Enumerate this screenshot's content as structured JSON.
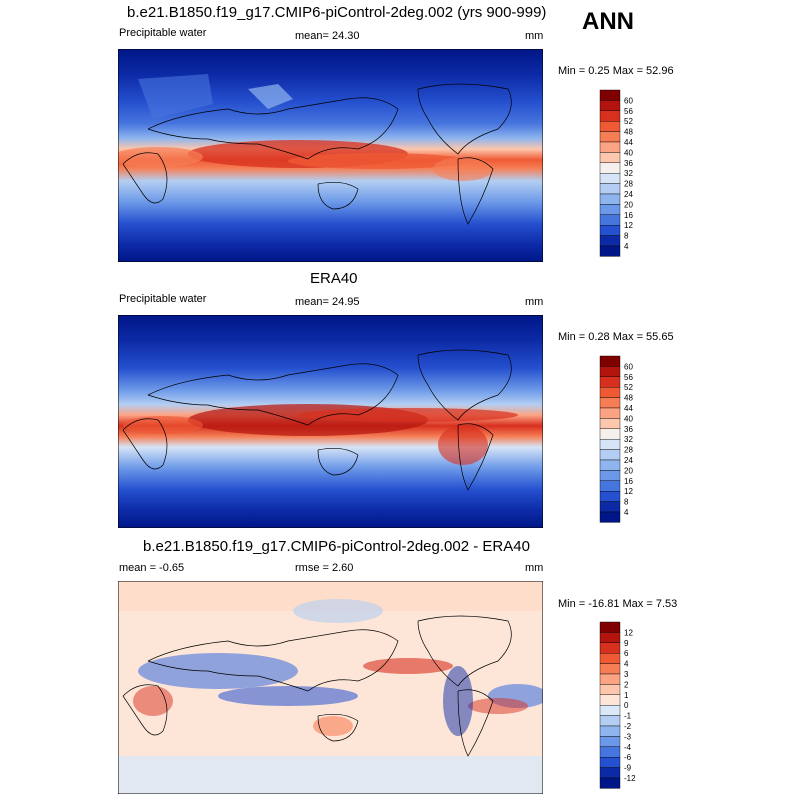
{
  "header": {
    "season": "ANN"
  },
  "panels": [
    {
      "id": "model",
      "title": "b.e21.B1850.f19_g17.CMIP6-piControl-2deg.002 (yrs 900-999)",
      "left_label": "Precipitable water",
      "center_label": "mean=  24.30",
      "units": "mm",
      "minmax": "Min =   0.25 Max =  52.96",
      "colorbar_levels": [
        "60",
        "56",
        "52",
        "48",
        "44",
        "40",
        "36",
        "32",
        "28",
        "24",
        "20",
        "16",
        "12",
        "8",
        "4"
      ],
      "colorbar_colors": [
        "#7f0000",
        "#b3140e",
        "#d7301f",
        "#ef5a35",
        "#f67e55",
        "#fca383",
        "#fdc7ad",
        "#f5f0ec",
        "#d6e4f7",
        "#b3cef2",
        "#8fb5ee",
        "#6b98e8",
        "#4775de",
        "#2550cf",
        "#0d2aa6",
        "#001688"
      ]
    },
    {
      "id": "obs",
      "title": "ERA40",
      "left_label": "Precipitable water",
      "center_label": "mean=  24.95",
      "units": "mm",
      "minmax": "Min =   0.28 Max =  55.65",
      "colorbar_levels": [
        "60",
        "56",
        "52",
        "48",
        "44",
        "40",
        "36",
        "32",
        "28",
        "24",
        "20",
        "16",
        "12",
        "8",
        "4"
      ],
      "colorbar_colors": [
        "#7f0000",
        "#b3140e",
        "#d7301f",
        "#ef5a35",
        "#f67e55",
        "#fca383",
        "#fdc7ad",
        "#f5f0ec",
        "#d6e4f7",
        "#b3cef2",
        "#8fb5ee",
        "#6b98e8",
        "#4775de",
        "#2550cf",
        "#0d2aa6",
        "#001688"
      ]
    },
    {
      "id": "diff",
      "title": "b.e21.B1850.f19_g17.CMIP6-piControl-2deg.002 - ERA40",
      "left_label": "mean =  -0.65",
      "center_label": "rmse =   2.60",
      "units": "mm",
      "minmax": "Min = -16.81 Max =   7.53",
      "colorbar_levels": [
        "12",
        "9",
        "6",
        "4",
        "3",
        "2",
        "1",
        "0",
        "-1",
        "-2",
        "-3",
        "-4",
        "-6",
        "-9",
        "-12"
      ],
      "colorbar_colors": [
        "#7f0000",
        "#b3140e",
        "#d7301f",
        "#ef5a35",
        "#f67e55",
        "#fca383",
        "#fdc7ad",
        "#fde6d8",
        "#dbe8f8",
        "#b3cef2",
        "#8fb5ee",
        "#6b98e8",
        "#4775de",
        "#2550cf",
        "#0d2aa6",
        "#001688"
      ]
    }
  ],
  "chart_data": [
    {
      "type": "heatmap",
      "title": "b.e21.B1850.f19_g17.CMIP6-piControl-2deg.002 (yrs 900-999)",
      "variable": "Precipitable water",
      "units": "mm",
      "mean": 24.3,
      "min": 0.25,
      "max": 52.96,
      "levels": [
        4,
        8,
        12,
        16,
        20,
        24,
        28,
        32,
        36,
        40,
        44,
        48,
        52,
        56,
        60
      ]
    },
    {
      "type": "heatmap",
      "title": "ERA40",
      "variable": "Precipitable water",
      "units": "mm",
      "mean": 24.95,
      "min": 0.28,
      "max": 55.65,
      "levels": [
        4,
        8,
        12,
        16,
        20,
        24,
        28,
        32,
        36,
        40,
        44,
        48,
        52,
        56,
        60
      ]
    },
    {
      "type": "heatmap",
      "title": "b.e21.B1850.f19_g17.CMIP6-piControl-2deg.002 - ERA40",
      "units": "mm",
      "mean": -0.65,
      "rmse": 2.6,
      "min": -16.81,
      "max": 7.53,
      "levels": [
        -12,
        -9,
        -6,
        -4,
        -3,
        -2,
        -1,
        0,
        1,
        2,
        3,
        4,
        6,
        9,
        12
      ]
    }
  ]
}
